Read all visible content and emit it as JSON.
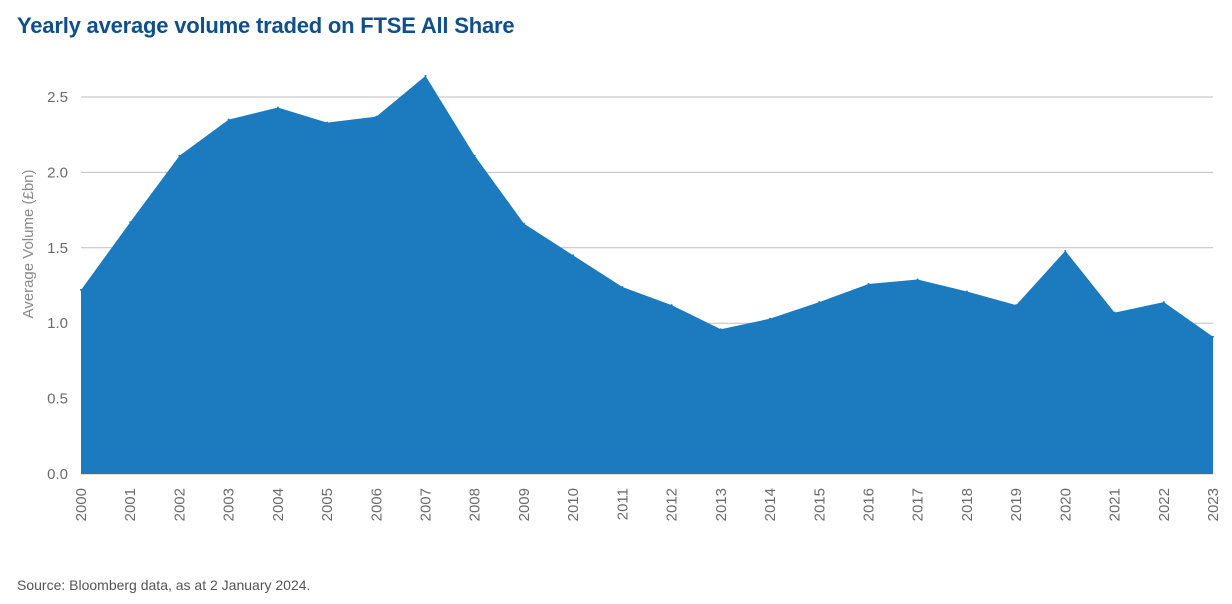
{
  "title": "Yearly average volume traded on FTSE All Share",
  "source": "Source: Bloomberg data, as at 2 January 2024.",
  "colors": {
    "title": "#0f4f8c",
    "area": "#1c7abf",
    "grid": "#bfbfbf",
    "tick": "#6b6b6b"
  },
  "chart_data": {
    "type": "area",
    "title": "Yearly average volume traded on FTSE All Share",
    "xlabel": "",
    "ylabel": "Average Volume (£bn)",
    "ylim": [
      0,
      2.5
    ],
    "yticks": [
      "0.0",
      "0.5",
      "1.0",
      "1.5",
      "2.0",
      "2.5"
    ],
    "grid": "horizontal",
    "legend": "none",
    "categories": [
      "2000",
      "2001",
      "2002",
      "2003",
      "2004",
      "2005",
      "2006",
      "2007",
      "2008",
      "2009",
      "2010",
      "2011",
      "2012",
      "2013",
      "2014",
      "2015",
      "2016",
      "2017",
      "2018",
      "2019",
      "2020",
      "2021",
      "2022",
      "2023"
    ],
    "values": [
      1.22,
      1.67,
      2.11,
      2.35,
      2.43,
      2.33,
      2.37,
      2.64,
      2.11,
      1.66,
      1.45,
      1.24,
      1.12,
      0.96,
      1.03,
      1.14,
      1.26,
      1.29,
      1.21,
      1.12,
      1.48,
      1.07,
      1.14,
      0.91
    ]
  }
}
